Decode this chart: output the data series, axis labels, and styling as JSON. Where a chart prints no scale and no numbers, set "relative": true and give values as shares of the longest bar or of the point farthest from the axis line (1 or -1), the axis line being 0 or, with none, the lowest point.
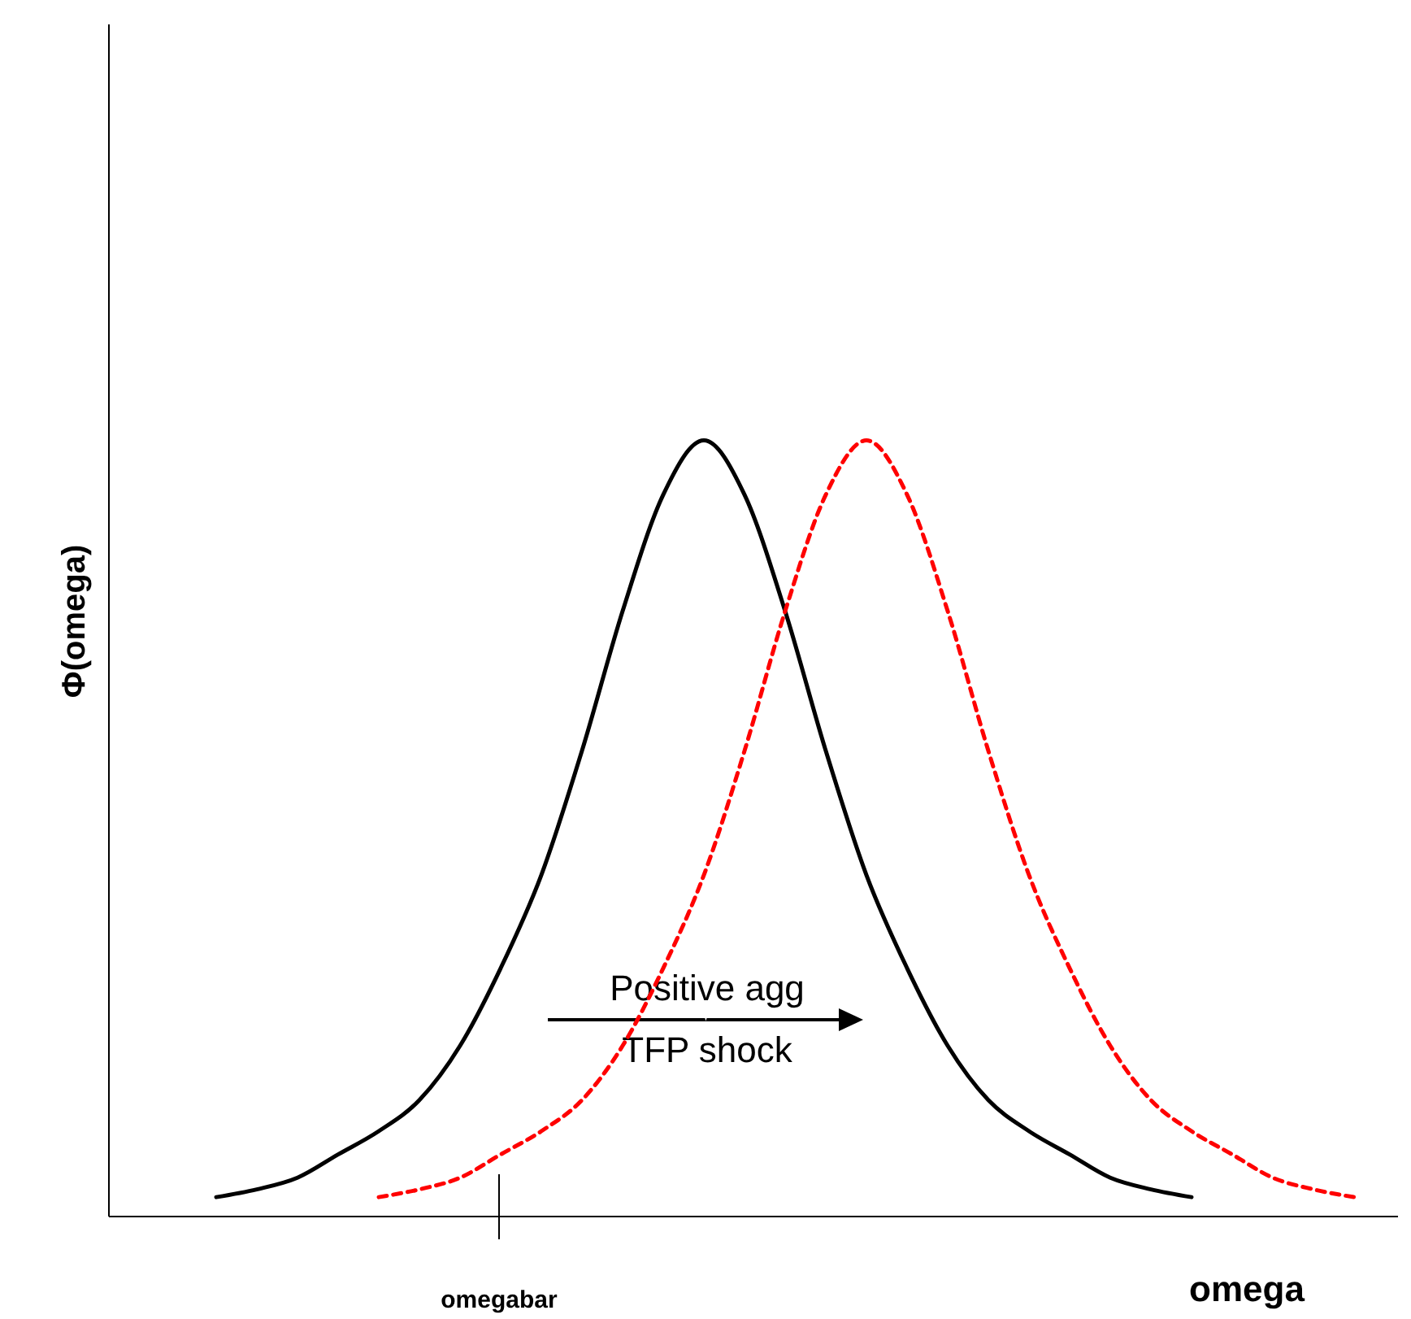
{
  "chart_data": {
    "type": "line",
    "relative": true,
    "xlabel": "omega",
    "ylabel": "Φ(omega)",
    "categories": [
      null,
      null,
      null,
      null,
      null,
      null,
      null,
      null,
      null,
      null,
      null,
      null,
      null,
      null,
      null,
      null,
      null,
      null,
      null,
      null,
      null,
      null,
      null,
      null,
      null,
      null,
      null,
      null,
      null
    ],
    "series": [
      {
        "color": "#000000",
        "line_style": "solid",
        "values": [
          0.025,
          0.035,
          0.05,
          0.08,
          0.11,
          0.15,
          0.22,
          0.32,
          0.44,
          0.6,
          0.78,
          0.93,
          1.0,
          0.93,
          0.78,
          0.6,
          0.44,
          0.32,
          0.22,
          0.15,
          0.11,
          0.08,
          0.05,
          0.035,
          0.025,
          null,
          null,
          null,
          null
        ]
      },
      {
        "color": "#ff0000",
        "line_style": "dashed",
        "values": [
          null,
          null,
          null,
          null,
          0.025,
          0.035,
          0.05,
          0.08,
          0.11,
          0.15,
          0.22,
          0.32,
          0.44,
          0.6,
          0.78,
          0.93,
          1.0,
          0.93,
          0.78,
          0.6,
          0.44,
          0.32,
          0.22,
          0.15,
          0.11,
          0.08,
          0.05,
          0.035,
          0.025
        ]
      }
    ],
    "annotations": [
      "Positive agg\nTFP shock",
      "omegabar"
    ]
  }
}
